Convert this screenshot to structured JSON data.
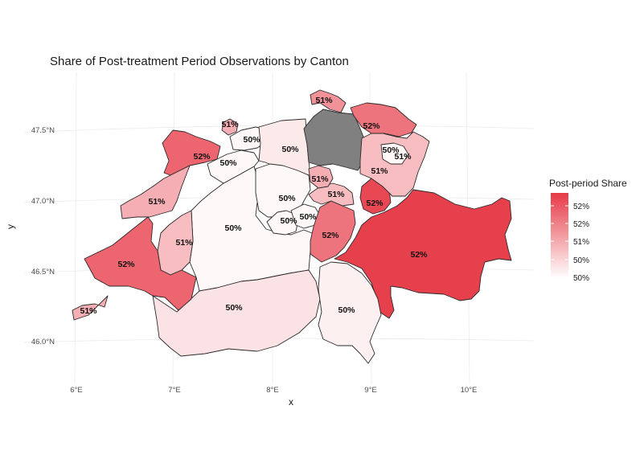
{
  "title": "Share of Post-treatment Period Observations by Canton",
  "xlabel": "x",
  "ylabel": "y",
  "x_ticks": [
    "6°E",
    "7°E",
    "8°E",
    "9°E",
    "10°E"
  ],
  "y_ticks": [
    "47.5°N",
    "47.0°N",
    "46.5°N",
    "46.0°N"
  ],
  "legend": {
    "title": "Post-period Share",
    "ticks": [
      "52%",
      "52%",
      "51%",
      "50%",
      "50%"
    ],
    "colors": {
      "high": "#e63946",
      "low": "#ffffff"
    }
  },
  "no_data_color": "#808080",
  "chart_data": {
    "type": "choropleth",
    "title": "Share of Post-treatment Period Observations by Canton",
    "xlabel": "x",
    "ylabel": "y",
    "legend_title": "Post-period Share",
    "legend_position": "right",
    "grid": true,
    "regions": [
      {
        "label": "50%",
        "share": 0.5,
        "lon": 7.62,
        "lat": 46.86
      },
      {
        "label": "50%",
        "share": 0.503,
        "lon": 7.62,
        "lat": 46.33
      },
      {
        "label": "51%",
        "share": 0.508,
        "lon": 7.12,
        "lat": 46.71
      },
      {
        "label": "52%",
        "share": 0.52,
        "lon": 6.52,
        "lat": 46.59
      },
      {
        "label": "51%",
        "share": 0.51,
        "lon": 6.13,
        "lat": 46.22
      },
      {
        "label": "52%",
        "share": 0.52,
        "lon": 7.18,
        "lat": 47.32
      },
      {
        "label": "51%",
        "share": 0.51,
        "lon": 6.84,
        "lat": 47.0
      },
      {
        "label": "50%",
        "share": 0.5,
        "lon": 7.58,
        "lat": 47.29
      },
      {
        "label": "51%",
        "share": 0.51,
        "lon": 7.55,
        "lat": 47.55
      },
      {
        "label": "50%",
        "share": 0.5,
        "lon": 7.78,
        "lat": 47.42
      },
      {
        "label": "50%",
        "share": 0.502,
        "lon": 8.17,
        "lat": 47.38
      },
      {
        "label": "50%",
        "share": 0.5,
        "lon": 8.13,
        "lat": 47.01
      },
      {
        "label": "50%",
        "share": 0.5,
        "lon": 8.15,
        "lat": 46.88
      },
      {
        "label": "50%",
        "share": 0.5,
        "lon": 8.37,
        "lat": 46.92
      },
      {
        "label": "52%",
        "share": 0.518,
        "lon": 8.59,
        "lat": 46.75
      },
      {
        "label": "51%",
        "share": 0.51,
        "lon": 8.48,
        "lat": 47.08
      },
      {
        "label": "51%",
        "share": 0.508,
        "lon": 8.65,
        "lat": 47.02
      },
      {
        "label": "52%",
        "share": 0.524,
        "lon": 9.05,
        "lat": 46.98
      },
      {
        "label": "51%",
        "share": 0.508,
        "lon": 9.1,
        "lat": 47.22
      },
      {
        "label": "50%",
        "share": 0.5,
        "lon": 9.2,
        "lat": 47.39
      },
      {
        "label": "51%",
        "share": 0.514,
        "lon": 9.31,
        "lat": 47.36
      },
      {
        "label": "52%",
        "share": 0.518,
        "lon": 9.0,
        "lat": 47.58
      },
      {
        "label": "51%",
        "share": 0.514,
        "lon": 8.63,
        "lat": 47.72
      },
      {
        "label": "52%",
        "share": 0.525,
        "lon": 9.5,
        "lat": 46.63
      },
      {
        "label": "50%",
        "share": 0.501,
        "lon": 8.84,
        "lat": 46.2
      }
    ]
  }
}
